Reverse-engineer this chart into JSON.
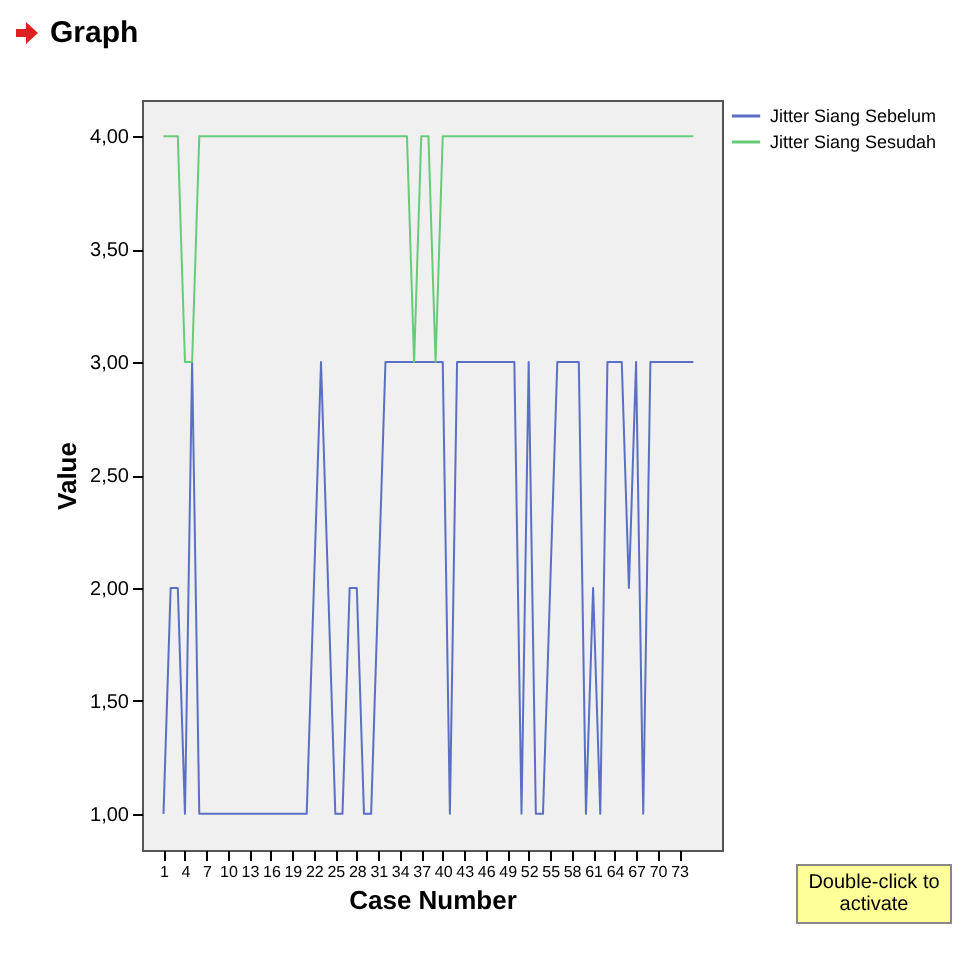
{
  "chart_data": {
    "type": "line",
    "title": "Graph",
    "xlabel": "Case Number",
    "ylabel": "Value",
    "x": [
      1,
      2,
      3,
      4,
      5,
      6,
      7,
      8,
      9,
      10,
      11,
      12,
      13,
      14,
      15,
      16,
      17,
      18,
      19,
      20,
      21,
      22,
      23,
      24,
      25,
      26,
      27,
      28,
      29,
      30,
      31,
      32,
      33,
      34,
      35,
      36,
      37,
      38,
      39,
      40,
      41,
      42,
      43,
      44,
      45,
      46,
      47,
      48,
      49,
      50,
      51,
      52,
      53,
      54,
      55,
      56,
      57,
      58,
      59,
      60,
      61,
      62,
      63,
      64,
      65,
      66,
      67,
      68,
      69,
      70,
      71,
      72,
      73,
      74,
      75
    ],
    "series": [
      {
        "name": "Jitter Siang Sebelum",
        "color": "#5b6fc4",
        "values": [
          1,
          2,
          2,
          1,
          3,
          1,
          1,
          1,
          1,
          1,
          1,
          1,
          1,
          1,
          1,
          1,
          1,
          1,
          1,
          1,
          1,
          2,
          3,
          2,
          1,
          1,
          2,
          2,
          1,
          1,
          2,
          3,
          3,
          3,
          3,
          3,
          3,
          3,
          3,
          3,
          1,
          3,
          3,
          3,
          3,
          3,
          3,
          3,
          3,
          3,
          1,
          3,
          1,
          1,
          2,
          3,
          3,
          3,
          3,
          1,
          2,
          1,
          3,
          3,
          3,
          2,
          3,
          1,
          3,
          3,
          3,
          3,
          3,
          3,
          3
        ]
      },
      {
        "name": "Jitter Siang Sesudah",
        "color": "#66cc77",
        "values": [
          4,
          4,
          4,
          3,
          3,
          4,
          4,
          4,
          4,
          4,
          4,
          4,
          4,
          4,
          4,
          4,
          4,
          4,
          4,
          4,
          4,
          4,
          4,
          4,
          4,
          4,
          4,
          4,
          4,
          4,
          4,
          4,
          4,
          4,
          4,
          3,
          4,
          4,
          3,
          4,
          4,
          4,
          4,
          4,
          4,
          4,
          4,
          4,
          4,
          4,
          4,
          4,
          4,
          4,
          4,
          4,
          4,
          4,
          4,
          4,
          4,
          4,
          4,
          4,
          4,
          4,
          4,
          4,
          4,
          4,
          4,
          4,
          4,
          4,
          4
        ]
      }
    ],
    "xlim": [
      -2,
      79
    ],
    "xticks": [
      1,
      4,
      7,
      10,
      13,
      16,
      19,
      22,
      25,
      28,
      31,
      34,
      37,
      40,
      43,
      46,
      49,
      52,
      55,
      58,
      61,
      64,
      67,
      70,
      73
    ],
    "ylim": [
      0.84,
      4.16
    ],
    "yticks": [
      {
        "value": 1,
        "label": "1,00"
      },
      {
        "value": 1.5,
        "label": "1,50"
      },
      {
        "value": 2,
        "label": "2,00"
      },
      {
        "value": 2.5,
        "label": "2,50"
      },
      {
        "value": 3,
        "label": "3,00"
      },
      {
        "value": 3.5,
        "label": "3,50"
      },
      {
        "value": 4,
        "label": "4,00"
      }
    ],
    "grid": false,
    "legend": "right",
    "marker": "none",
    "line_style": "solid",
    "annotations": [
      "Double-click to activate"
    ]
  }
}
